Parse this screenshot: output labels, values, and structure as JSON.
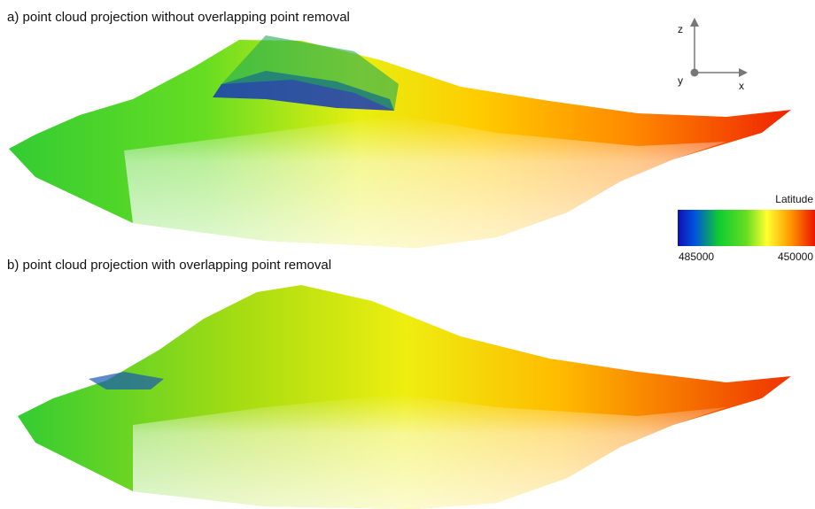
{
  "panels": [
    {
      "label": "a) point cloud projection without overlapping point removal"
    },
    {
      "label": "b) point cloud projection with overlapping point removal"
    }
  ],
  "axes_icon": {
    "z": "z",
    "y": "y",
    "x": "x"
  },
  "colorbar": {
    "title": "Latitude",
    "ticks": [
      485000,
      450000
    ]
  }
}
